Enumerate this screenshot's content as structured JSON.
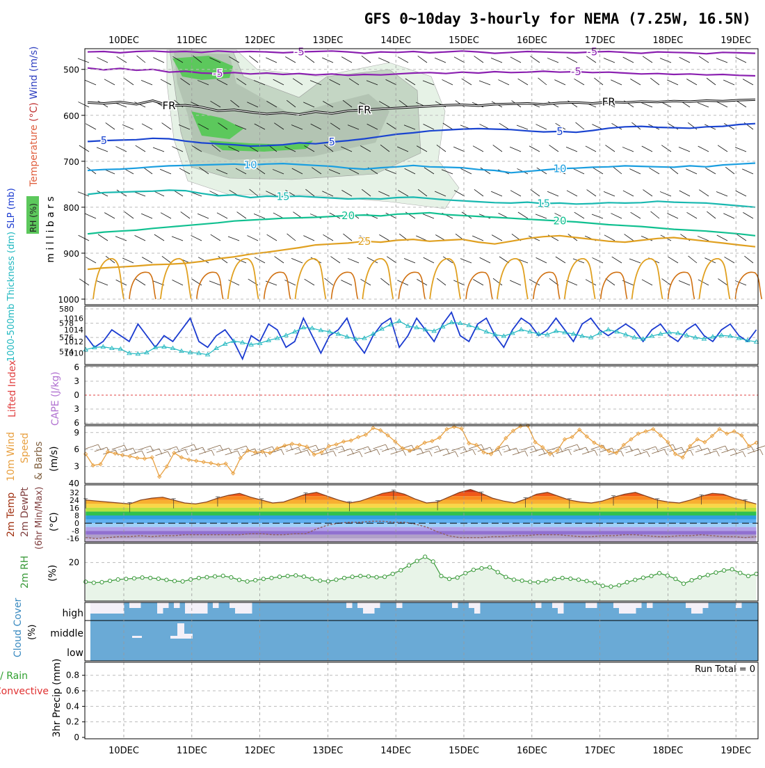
{
  "title": "GFS 0~10day 3-hourly for NEMA (7.25W, 16.5N)",
  "dates": [
    "10DEC",
    "11DEC",
    "12DEC",
    "13DEC",
    "14DEC",
    "15DEC",
    "16DEC",
    "17DEC",
    "18DEC",
    "19DEC"
  ],
  "colors": {
    "purple": "#8a1fb0",
    "black": "#000000",
    "blue": "#1a44d0",
    "lightblue": "#1a9ee0",
    "teal": "#18b8b0",
    "green": "#10c090",
    "orange": "#e0a020",
    "darkorange": "#d07010",
    "rh_light": "#e6f2e6",
    "rh_mid": "#c4d6c4",
    "rh_dark": "#a8b8a8",
    "rh_green": "#5cc85c",
    "slp": "#1a3ad0",
    "thick": "#20b8c0",
    "li_red": "#e04040",
    "wind10": "#e8a040",
    "barb10": "#806040",
    "rh2m": "#3a9a3a",
    "rh2m_fill": "#e8f4e8",
    "cloud": "#6aaad6",
    "cloud_clear": "#f4f0f8",
    "temp_line": "#804020",
    "dew_line": "#906060"
  },
  "chart_data": [
    {
      "name": "upper-air",
      "type": "line",
      "ylabel_parts": [
        "Temperature",
        "(°C)",
        "Wind",
        "(m/s)"
      ],
      "ylabel2": "m i l l i b a r s",
      "rh_label": "RH (%)",
      "yticks": [
        500,
        600,
        700,
        800,
        900,
        1000
      ],
      "ylim": [
        455,
        1000
      ],
      "contours": [
        {
          "label": "-5",
          "color": "purple",
          "values": [
            462,
            461,
            464,
            461,
            460,
            462,
            461,
            463,
            460,
            462,
            461,
            462,
            464,
            462,
            461,
            460,
            462,
            465,
            462,
            463,
            461,
            464,
            462,
            460,
            462,
            465,
            463,
            461,
            462,
            463,
            464,
            462,
            461,
            463,
            465,
            462,
            463,
            464,
            466,
            463,
            464,
            465
          ]
        },
        {
          "label": "-5",
          "color": "purple",
          "values": [
            497,
            501,
            498,
            502,
            500,
            506,
            504,
            508,
            509,
            507,
            510,
            508,
            511,
            509,
            512,
            510,
            513,
            511,
            512,
            510,
            508,
            507,
            509,
            506,
            508,
            505,
            507,
            506,
            504,
            506,
            505,
            507,
            506,
            508,
            510,
            509,
            511,
            510,
            512,
            511,
            513,
            514
          ]
        },
        {
          "label": "FR",
          "color": "black",
          "double": true,
          "values": [
            572,
            574,
            571,
            576,
            568,
            579,
            578,
            582,
            590,
            588,
            593,
            597,
            594,
            598,
            592,
            596,
            590,
            588,
            586,
            584,
            582,
            580,
            578,
            577,
            579,
            576,
            575,
            574,
            576,
            573,
            572,
            574,
            571,
            572,
            570,
            571,
            569,
            570,
            568,
            569,
            567,
            566
          ]
        },
        {
          "label": "5",
          "color": "blue",
          "values": [
            657,
            655,
            654,
            653,
            650,
            651,
            656,
            660,
            662,
            664,
            667,
            666,
            664,
            660,
            662,
            658,
            655,
            651,
            646,
            641,
            638,
            634,
            632,
            630,
            629,
            630,
            631,
            634,
            636,
            635,
            637,
            633,
            628,
            625,
            624,
            626,
            627,
            628,
            625,
            624,
            620,
            618
          ]
        },
        {
          "label": "10",
          "color": "lightblue",
          "values": [
            720,
            718,
            717,
            715,
            712,
            710,
            709,
            708,
            707,
            706,
            708,
            706,
            705,
            707,
            709,
            711,
            715,
            717,
            714,
            712,
            709,
            712,
            713,
            714,
            718,
            720,
            725,
            722,
            719,
            716,
            715,
            713,
            712,
            710,
            711,
            712,
            713,
            710,
            712,
            708,
            706,
            704
          ]
        },
        {
          "label": "15",
          "color": "teal",
          "values": [
            772,
            768,
            767,
            766,
            765,
            763,
            764,
            770,
            775,
            773,
            779,
            776,
            777,
            776,
            778,
            780,
            782,
            781,
            782,
            779,
            778,
            781,
            784,
            786,
            788,
            790,
            791,
            789,
            792,
            791,
            793,
            792,
            790,
            791,
            790,
            787,
            789,
            790,
            791,
            794,
            797,
            800
          ]
        },
        {
          "label": "20",
          "color": "green",
          "values": [
            858,
            854,
            852,
            850,
            846,
            843,
            840,
            837,
            834,
            830,
            828,
            826,
            824,
            823,
            822,
            820,
            818,
            817,
            819,
            815,
            814,
            812,
            816,
            818,
            820,
            822,
            824,
            826,
            828,
            830,
            832,
            835,
            838,
            840,
            842,
            845,
            848,
            850,
            852,
            855,
            858,
            862
          ]
        },
        {
          "label": "25",
          "color": "orange",
          "values": [
            935,
            932,
            930,
            928,
            925,
            924,
            922,
            918,
            912,
            908,
            902,
            898,
            893,
            888,
            882,
            880,
            878,
            874,
            876,
            872,
            870,
            874,
            872,
            870,
            876,
            880,
            874,
            868,
            864,
            862,
            866,
            870,
            874,
            876,
            872,
            868,
            866,
            870,
            874,
            878,
            882,
            886
          ]
        }
      ]
    },
    {
      "name": "slp-thickness",
      "type": "line",
      "ylabel_parts": [
        "1000-500mb",
        "Thickness",
        "(dm)",
        "SLP",
        "(mb)"
      ],
      "yticks_left": [
        574,
        576,
        578,
        580
      ],
      "yticks_right": [
        1010,
        1012,
        1014,
        1016
      ],
      "slp": [
        1013,
        1011,
        1012,
        1014,
        1013,
        1012,
        1015,
        1013,
        1011,
        1013,
        1012,
        1014,
        1016,
        1012,
        1011,
        1013,
        1014,
        1012,
        1009,
        1013,
        1012,
        1015,
        1014,
        1011,
        1012,
        1016,
        1013,
        1010,
        1013,
        1014,
        1016,
        1012,
        1010,
        1013,
        1015,
        1016,
        1011,
        1013,
        1016,
        1014,
        1012,
        1015,
        1017,
        1013,
        1012,
        1015,
        1016,
        1013,
        1011,
        1014,
        1016,
        1015,
        1013,
        1014,
        1016,
        1014,
        1012,
        1015,
        1016,
        1014,
        1013,
        1014,
        1015,
        1014,
        1012,
        1014,
        1015,
        1013,
        1012,
        1014,
        1015,
        1013,
        1012,
        1014,
        1015,
        1013,
        1012,
        1014
      ],
      "thickness": [
        574.3,
        574.6,
        574.7,
        574.5,
        574.4,
        573.8,
        573.7,
        573.9,
        574.6,
        574.7,
        574.5,
        574.1,
        573.9,
        573.8,
        573.6,
        574.5,
        575.1,
        575.5,
        575.3,
        575.0,
        575.2,
        575.6,
        575.9,
        576.3,
        576.8,
        577.4,
        577.3,
        577.0,
        576.8,
        576.5,
        576.1,
        575.8,
        575.9,
        576.5,
        577.2,
        577.8,
        578.3,
        577.6,
        577.4,
        577.1,
        576.9,
        577.5,
        578.1,
        578.0,
        577.7,
        577.3,
        576.8,
        576.4,
        576.2,
        576.6,
        577.1,
        576.8,
        576.5,
        576.4,
        576.9,
        576.7,
        576.5,
        576.2,
        576.0,
        576.6,
        577.1,
        576.8,
        576.4,
        576.0,
        575.8,
        576.2,
        576.5,
        576.7,
        576.6,
        576.3,
        576.0,
        575.8,
        576.1,
        576.3,
        576.2,
        575.9,
        575.6,
        575.4
      ]
    },
    {
      "name": "lifted-index-cape",
      "type": "line",
      "ylabel_parts": [
        "Lifted Index",
        "CAPE (J/kg)"
      ],
      "yticks": [
        6,
        3,
        0,
        -3,
        -6
      ],
      "ytick_labels": [
        "6",
        "3",
        "0",
        "3",
        "6"
      ],
      "values": []
    },
    {
      "name": "wind-10m",
      "type": "line",
      "ylabel_parts": [
        "10m Wind",
        "Speed",
        "& Barbs",
        "(m/s)"
      ],
      "yticks": [
        3,
        6,
        9
      ],
      "ylim": [
        0,
        10.2
      ],
      "speed": [
        5.2,
        3.2,
        3.4,
        5.6,
        5.3,
        5.0,
        4.8,
        4.5,
        4.4,
        4.6,
        1.2,
        3.0,
        5.4,
        4.6,
        4.2,
        4.0,
        3.8,
        3.6,
        3.3,
        3.5,
        1.8,
        4.5,
        5.8,
        5.5,
        5.6,
        5.4,
        6.2,
        6.7,
        7.0,
        6.8,
        6.5,
        5.1,
        5.5,
        6.6,
        6.9,
        7.4,
        7.6,
        8.2,
        8.6,
        9.8,
        9.4,
        8.5,
        7.4,
        6.2,
        5.8,
        6.4,
        7.2,
        7.5,
        8.1,
        9.6,
        10.0,
        9.7,
        7.1,
        6.8,
        5.5,
        5.2,
        6.3,
        8.0,
        9.3,
        10.1,
        10.2,
        7.3,
        6.4,
        5.2,
        5.8,
        7.8,
        8.2,
        9.5,
        8.3,
        7.2,
        6.5,
        5.7,
        5.4,
        6.8,
        7.8,
        8.8,
        9.2,
        9.6,
        8.5,
        7.3,
        5.2,
        4.6,
        6.6,
        7.8,
        7.3,
        8.4,
        9.6,
        8.8,
        9.2,
        8.5,
        6.6,
        7.2
      ]
    },
    {
      "name": "temp-2m",
      "type": "area",
      "ylabel_parts": [
        "2m Temp",
        "2m DewPt",
        "(6hr Min/Max)",
        "(°C)"
      ],
      "yticks": [
        32,
        24,
        16,
        8,
        0,
        -8,
        -16
      ],
      "temp": [
        24,
        23,
        22,
        21,
        20,
        24,
        26,
        27,
        24,
        21,
        20,
        22,
        26,
        29,
        31,
        27,
        24,
        21,
        22,
        26,
        30,
        32,
        28,
        24,
        21,
        23,
        27,
        31,
        33,
        30,
        25,
        21,
        22,
        27,
        32,
        35,
        31,
        26,
        23,
        21,
        25,
        30,
        32,
        28,
        24,
        22,
        21,
        23,
        27,
        30,
        32,
        28,
        24,
        22,
        21,
        24,
        28,
        31,
        30,
        26,
        23,
        20
      ],
      "dewpoint": [
        -15,
        -16,
        -15,
        -14,
        -14,
        -13,
        -14,
        -13,
        -13,
        -12,
        -12,
        -12,
        -12,
        -12,
        -12,
        -11,
        -11,
        -12,
        -12,
        -11,
        -11,
        -6,
        -2,
        0,
        1,
        1,
        2,
        2,
        1,
        1,
        -1,
        -4,
        -9,
        -13,
        -15,
        -15,
        -15,
        -14,
        -14,
        -13,
        -13,
        -12,
        -12,
        -12,
        -13,
        -14,
        -14,
        -13,
        -13,
        -12,
        -12,
        -13,
        -14,
        -14,
        -13,
        -13,
        -12,
        -13,
        -14,
        -14,
        -15,
        -14
      ]
    },
    {
      "name": "rh-2m",
      "type": "area",
      "ylabel_parts": [
        "2m RH",
        "(%)"
      ],
      "yticks": [
        20
      ],
      "ylim": [
        0,
        30
      ],
      "values": [
        10,
        9.5,
        9.8,
        10.5,
        11.2,
        11.5,
        11.8,
        12.2,
        12.0,
        11.6,
        11.0,
        10.4,
        10.2,
        11.2,
        12.0,
        12.4,
        12.8,
        13.1,
        12.3,
        11.0,
        10.2,
        10.8,
        11.5,
        12.0,
        12.6,
        13.0,
        13.3,
        12.7,
        11.5,
        10.6,
        10.3,
        11.1,
        12.0,
        12.6,
        13.0,
        12.8,
        12.4,
        12.6,
        14.1,
        16.0,
        18.5,
        20.8,
        23.0,
        20.5,
        13.0,
        11.5,
        12.2,
        14.5,
        16.2,
        17.0,
        17.5,
        15.0,
        12.5,
        11.1,
        10.6,
        10.0,
        9.8,
        10.6,
        11.5,
        12.0,
        11.6,
        11.1,
        10.4,
        9.5,
        7.9,
        7.5,
        8.2,
        9.8,
        11.0,
        12.1,
        13.0,
        14.5,
        13.2,
        11.5,
        9.0,
        10.8,
        12.3,
        13.5,
        14.8,
        15.9,
        16.5,
        14.6,
        13.0,
        14.1
      ]
    },
    {
      "name": "cloud-cover",
      "type": "heatmap",
      "ylabel_parts": [
        "Cloud Cover",
        "(%)"
      ],
      "levels": [
        "high",
        "middle",
        "low"
      ],
      "high_clear_depth": [
        2,
        2,
        2,
        2,
        2,
        2,
        0,
        1,
        1,
        0,
        0,
        0,
        2,
        1,
        0,
        1,
        0,
        2,
        2,
        2,
        2,
        0,
        1,
        0,
        0,
        1,
        2,
        2,
        2,
        0,
        0,
        0,
        0,
        0,
        0,
        0,
        0,
        0,
        0,
        0,
        0,
        0,
        0,
        0,
        0,
        0,
        1,
        0,
        1,
        2,
        2,
        1,
        0,
        0,
        0,
        1,
        0,
        0,
        0,
        0,
        0,
        0,
        0,
        0,
        0,
        1,
        0,
        0,
        1,
        2,
        0,
        0,
        0,
        0,
        0,
        0,
        0,
        0,
        0,
        0,
        1,
        0,
        0,
        1,
        2,
        0,
        0,
        0,
        0,
        1,
        1,
        0,
        0,
        0,
        1,
        2,
        2,
        2,
        1,
        0,
        1,
        0,
        0,
        0,
        0,
        0,
        0,
        1,
        2,
        2,
        1,
        0,
        0,
        0,
        0,
        0,
        1,
        0,
        0,
        0
      ]
    },
    {
      "name": "precipitation",
      "type": "bar",
      "ylabel_parts": [
        "Total / Rain",
        "Convective",
        "3hr Precip (mm)"
      ],
      "yticks": [
        0,
        0.2,
        0.4,
        0.6,
        0.8
      ],
      "ytick_labels": [
        "0",
        "0.2",
        "0.4",
        "0.6",
        "0.8"
      ],
      "ylim": [
        0,
        0.95
      ],
      "values": [],
      "run_total": "Run Total = 0"
    }
  ]
}
